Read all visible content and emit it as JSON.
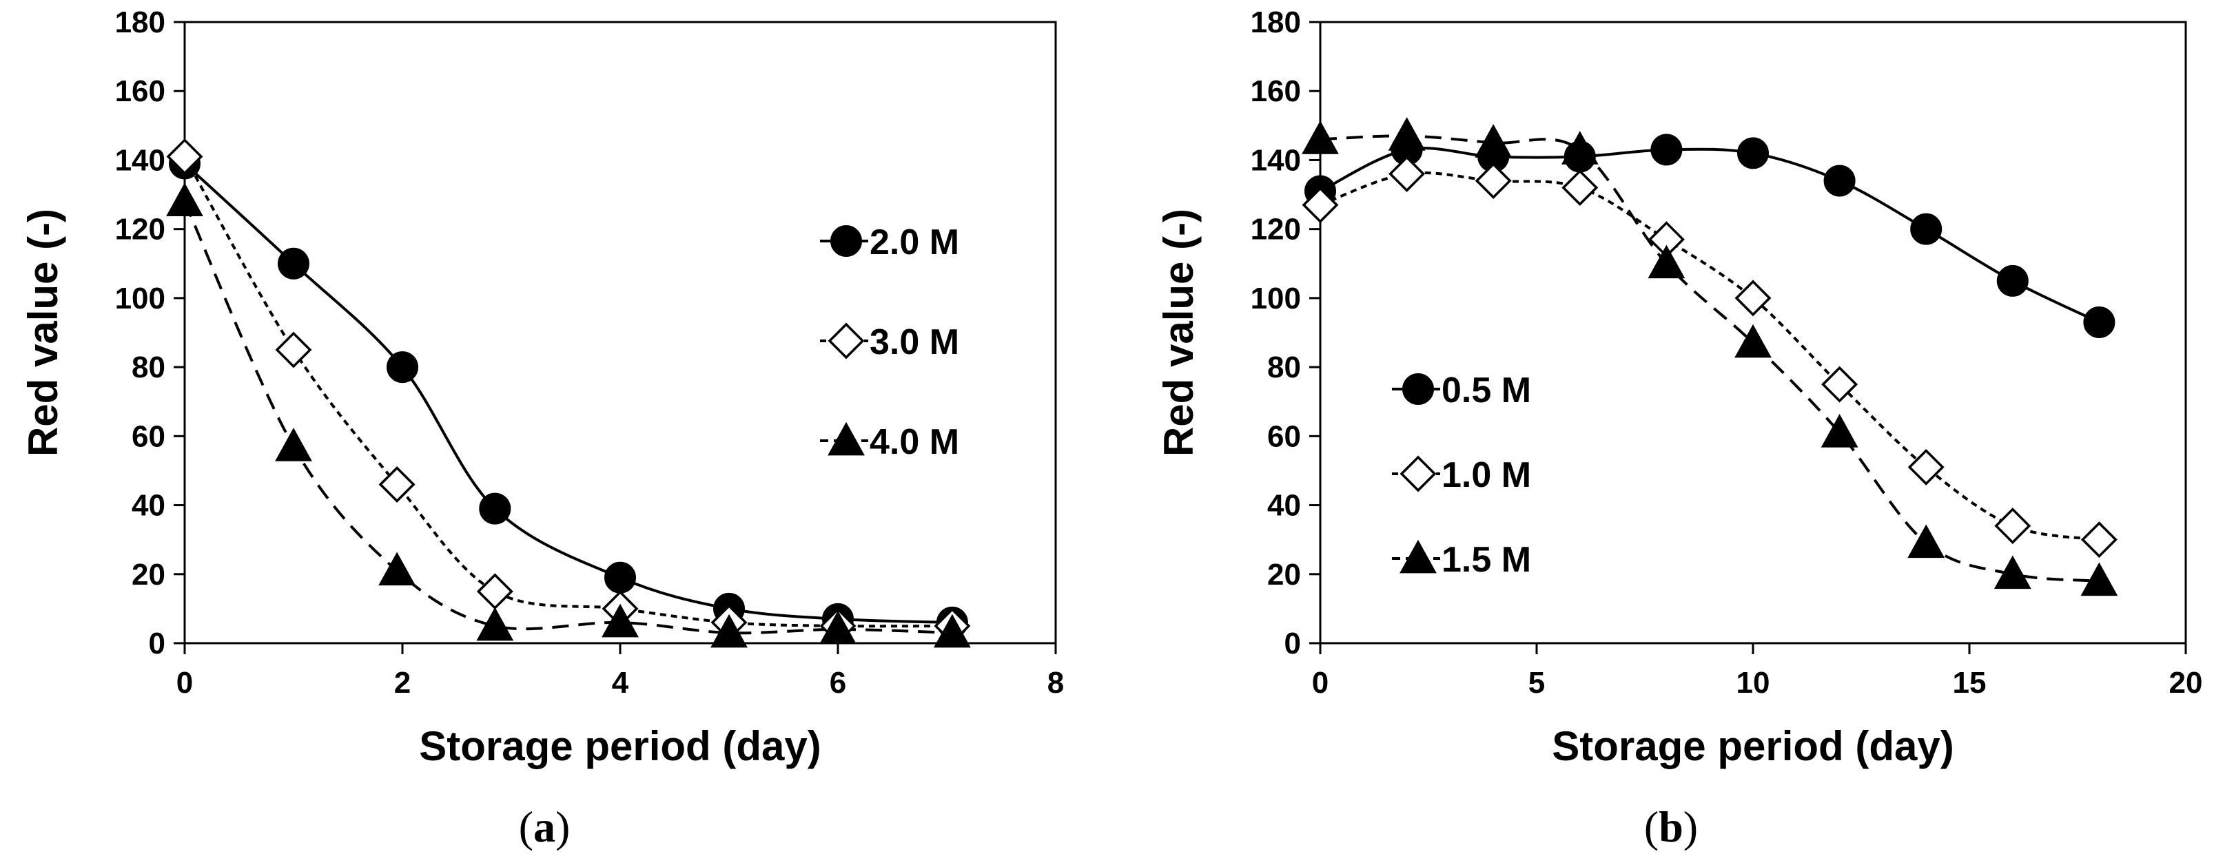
{
  "chart_data": [
    {
      "id": "a",
      "type": "line",
      "panel_label": "a",
      "xlabel": "Storage period (day)",
      "ylabel": "Red value (-)",
      "xlim": [
        0,
        8
      ],
      "ylim": [
        0,
        180
      ],
      "xticks": [
        0,
        2,
        4,
        6,
        8
      ],
      "yticks": [
        0,
        20,
        40,
        60,
        80,
        100,
        120,
        140,
        160,
        180
      ],
      "legend_position": "right",
      "series": [
        {
          "name": "2.0 M",
          "marker": "filled-circle",
          "line": "solid",
          "x": [
            0,
            1,
            2,
            2.85,
            4,
            5,
            6,
            7.05
          ],
          "y": [
            139,
            110,
            80,
            39,
            19,
            10,
            7,
            6
          ]
        },
        {
          "name": "3.0 M",
          "marker": "open-diamond",
          "line": "dotted",
          "x": [
            0,
            1,
            1.95,
            2.85,
            4,
            5,
            6,
            7.05
          ],
          "y": [
            141,
            85,
            46,
            15,
            10,
            6,
            5,
            5
          ]
        },
        {
          "name": "4.0 M",
          "marker": "filled-triangle",
          "line": "dashed",
          "x": [
            0,
            1,
            1.95,
            2.85,
            4,
            5,
            6,
            7.05
          ],
          "y": [
            128,
            57,
            21,
            5,
            6,
            3,
            4,
            3
          ]
        }
      ]
    },
    {
      "id": "b",
      "type": "line",
      "panel_label": "b",
      "xlabel": "Storage period (day)",
      "ylabel": "Red value (-)",
      "xlim": [
        0,
        20
      ],
      "ylim": [
        0,
        180
      ],
      "xticks": [
        0,
        5,
        10,
        15,
        20
      ],
      "yticks": [
        0,
        20,
        40,
        60,
        80,
        100,
        120,
        140,
        160,
        180
      ],
      "legend_position": "bottom-left",
      "series": [
        {
          "name": "0.5 M",
          "marker": "filled-circle",
          "line": "solid",
          "x": [
            0,
            2,
            4,
            6,
            8,
            10,
            12,
            14,
            16,
            18
          ],
          "y": [
            131,
            143,
            141,
            141,
            143,
            142,
            134,
            120,
            105,
            93
          ]
        },
        {
          "name": "1.0 M",
          "marker": "open-diamond",
          "line": "dotted",
          "x": [
            0,
            2,
            4,
            6,
            8,
            10,
            12,
            14,
            16,
            18
          ],
          "y": [
            127,
            136,
            134,
            132,
            117,
            100,
            75,
            51,
            34,
            30
          ]
        },
        {
          "name": "1.5 M",
          "marker": "filled-triangle",
          "line": "dashed",
          "x": [
            0,
            2,
            4,
            6,
            8,
            10,
            12,
            14,
            16,
            18
          ],
          "y": [
            146,
            147,
            145,
            143,
            110,
            87,
            61,
            29,
            20,
            18
          ]
        }
      ]
    }
  ]
}
